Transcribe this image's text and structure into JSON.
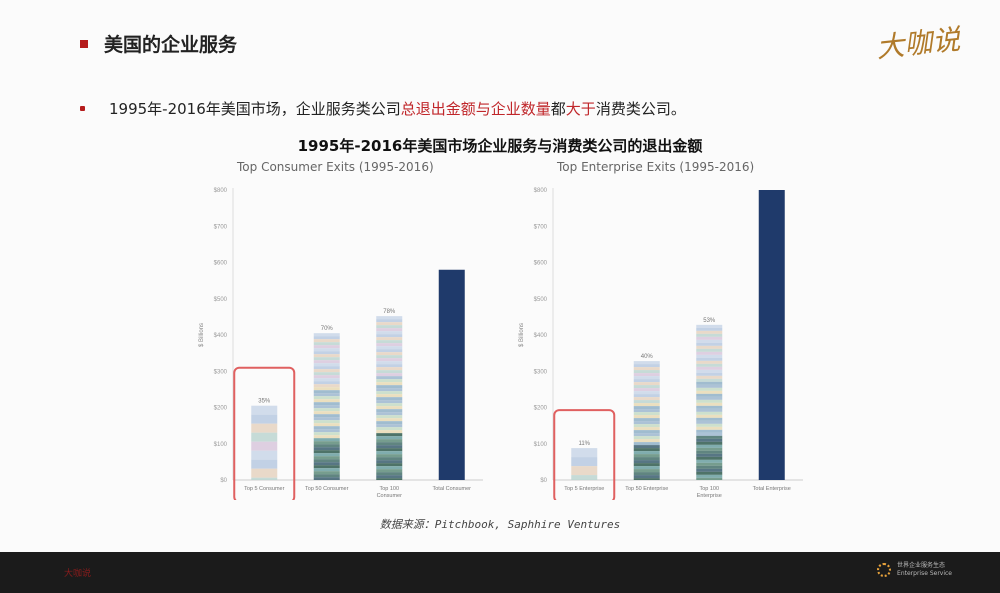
{
  "slide": {
    "title": "美国的企业服务",
    "logo_text": "大咖说",
    "bullet": {
      "part1": "1995年-2016年美国市场，企业服务类公司",
      "highlight1": "总退出金额与企业数量",
      "part2": "都",
      "highlight2": "大于",
      "part3": "消费类公司。"
    },
    "chart_title": "1995年-2016年美国市场企业服务与消费类公司的退出金额",
    "source": "数据来源：Pitchbook, Saphhire Ventures",
    "footer": {
      "left_text": "大咖说",
      "logo_text_line1": "世界企业服务生态",
      "logo_text_line2": "Enterprise Service"
    }
  },
  "colors": {
    "accent": "#b51c1c",
    "navy": "#1f3a6b",
    "highlight_box": "#e06060"
  },
  "chart_data": [
    {
      "type": "bar",
      "title": "Top Consumer Exits (1995-2016)",
      "ylabel": "$ Billions",
      "ylim": [
        0,
        800
      ],
      "yticks": [
        "$0",
        "$100",
        "$200",
        "$300",
        "$400",
        "$500",
        "$600",
        "$700",
        "$800"
      ],
      "categories": [
        "Top 5 Consumer",
        "Top 50 Consumer",
        "Top 100 Consumer",
        "Total Consumer"
      ],
      "values": [
        205,
        405,
        452,
        580
      ],
      "labels": [
        "35%",
        "70%",
        "78%",
        ""
      ],
      "highlighted": [
        0
      ]
    },
    {
      "type": "bar",
      "title": "Top Enterprise Exits (1995-2016)",
      "ylabel": "$ Billions",
      "ylim": [
        0,
        800
      ],
      "yticks": [
        "$0",
        "$100",
        "$200",
        "$300",
        "$400",
        "$500",
        "$600",
        "$700",
        "$800"
      ],
      "categories": [
        "Top 5 Enterprise",
        "Top 50 Enterprise",
        "Top 100 Enterprise",
        "Total Enterprise"
      ],
      "values": [
        88,
        328,
        428,
        800
      ],
      "labels": [
        "11%",
        "40%",
        "53%",
        ""
      ],
      "highlighted": [
        0
      ]
    }
  ]
}
